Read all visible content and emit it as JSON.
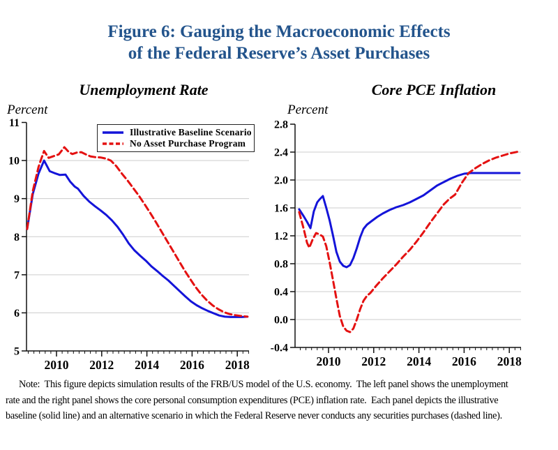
{
  "figure": {
    "title_line1": "Figure 6: Gauging the Macroeconomic Effects",
    "title_line2": "of the Federal Reserve’s Asset Purchases",
    "title_color": "#23548c"
  },
  "legend": {
    "items": [
      {
        "label": "Illustrative Baseline Scenario",
        "color": "#1414d9",
        "style": "solid"
      },
      {
        "label": "No Asset Purchase Program",
        "color": "#e41111",
        "style": "dashed"
      }
    ]
  },
  "note": {
    "line1": "Note:  This figure depicts simulation results of the FRB/US model of the U.S. economy.  The left panel shows the unemployment",
    "line2": "rate and the right panel shows the core personal consumption expenditures (PCE) inflation rate.  Each panel depicts the illustrative",
    "line3": "baseline (solid line) and an alternative scenario in which the Federal Reserve never conducts any securities purchases (dashed line)."
  },
  "chart_data": [
    {
      "type": "line",
      "title": "Unemployment Rate",
      "ylabel": "Percent",
      "xlabel": "",
      "xlim": [
        2008.55,
        2018.5
      ],
      "ylim": [
        5,
        11
      ],
      "yticks": [
        5,
        6,
        7,
        8,
        9,
        10,
        11
      ],
      "ytick_labels": [
        "5",
        "6",
        "7",
        "8",
        "9",
        "10",
        "11"
      ],
      "xticks": [
        2010,
        2012,
        2014,
        2016,
        2018
      ],
      "xtick_labels": [
        "2010",
        "2012",
        "2014",
        "2016",
        "2018"
      ],
      "grid_y": [
        6,
        7,
        8,
        9,
        10
      ],
      "minor_tick_step": 0.25,
      "legend_position": "top-center",
      "series": [
        {
          "name": "Illustrative Baseline Scenario",
          "color": "#1414d9",
          "style": "solid",
          "points": [
            [
              2008.7,
              8.2
            ],
            [
              2008.95,
              9.12
            ],
            [
              2009.2,
              9.65
            ],
            [
              2009.45,
              10.0
            ],
            [
              2009.7,
              9.72
            ],
            [
              2009.95,
              9.66
            ],
            [
              2010.15,
              9.62
            ],
            [
              2010.4,
              9.63
            ],
            [
              2010.6,
              9.45
            ],
            [
              2010.8,
              9.32
            ],
            [
              2010.95,
              9.26
            ],
            [
              2011.2,
              9.07
            ],
            [
              2011.45,
              8.92
            ],
            [
              2011.7,
              8.8
            ],
            [
              2011.95,
              8.69
            ],
            [
              2012.2,
              8.57
            ],
            [
              2012.45,
              8.43
            ],
            [
              2012.7,
              8.26
            ],
            [
              2012.95,
              8.05
            ],
            [
              2013.2,
              7.82
            ],
            [
              2013.45,
              7.64
            ],
            [
              2013.7,
              7.5
            ],
            [
              2013.95,
              7.37
            ],
            [
              2014.2,
              7.22
            ],
            [
              2014.45,
              7.1
            ],
            [
              2014.7,
              6.97
            ],
            [
              2014.95,
              6.85
            ],
            [
              2015.2,
              6.71
            ],
            [
              2015.45,
              6.57
            ],
            [
              2015.7,
              6.43
            ],
            [
              2015.95,
              6.3
            ],
            [
              2016.2,
              6.2
            ],
            [
              2016.45,
              6.12
            ],
            [
              2016.7,
              6.05
            ],
            [
              2016.95,
              5.99
            ],
            [
              2017.2,
              5.93
            ],
            [
              2017.45,
              5.9
            ],
            [
              2017.7,
              5.89
            ],
            [
              2017.95,
              5.89
            ],
            [
              2018.2,
              5.89
            ],
            [
              2018.45,
              5.9
            ]
          ]
        },
        {
          "name": "No Asset Purchase Program",
          "color": "#e41111",
          "style": "dashed",
          "points": [
            [
              2008.7,
              8.2
            ],
            [
              2008.95,
              9.2
            ],
            [
              2009.2,
              9.82
            ],
            [
              2009.3,
              10.0
            ],
            [
              2009.45,
              10.25
            ],
            [
              2009.65,
              10.07
            ],
            [
              2009.9,
              10.12
            ],
            [
              2010.1,
              10.16
            ],
            [
              2010.35,
              10.35
            ],
            [
              2010.55,
              10.22
            ],
            [
              2010.7,
              10.17
            ],
            [
              2010.9,
              10.21
            ],
            [
              2011.1,
              10.22
            ],
            [
              2011.3,
              10.16
            ],
            [
              2011.5,
              10.11
            ],
            [
              2011.7,
              10.09
            ],
            [
              2011.95,
              10.08
            ],
            [
              2012.2,
              10.05
            ],
            [
              2012.4,
              10.0
            ],
            [
              2012.65,
              9.85
            ],
            [
              2012.9,
              9.65
            ],
            [
              2013.15,
              9.47
            ],
            [
              2013.4,
              9.27
            ],
            [
              2013.65,
              9.07
            ],
            [
              2013.9,
              8.85
            ],
            [
              2014.15,
              8.62
            ],
            [
              2014.4,
              8.38
            ],
            [
              2014.65,
              8.13
            ],
            [
              2014.9,
              7.88
            ],
            [
              2015.15,
              7.63
            ],
            [
              2015.4,
              7.38
            ],
            [
              2015.65,
              7.13
            ],
            [
              2015.9,
              6.9
            ],
            [
              2016.15,
              6.68
            ],
            [
              2016.4,
              6.49
            ],
            [
              2016.65,
              6.33
            ],
            [
              2016.9,
              6.2
            ],
            [
              2017.15,
              6.1
            ],
            [
              2017.4,
              6.02
            ],
            [
              2017.65,
              5.97
            ],
            [
              2017.9,
              5.94
            ],
            [
              2018.15,
              5.92
            ],
            [
              2018.45,
              5.9
            ]
          ]
        }
      ]
    },
    {
      "type": "line",
      "title": "Core PCE Inflation",
      "ylabel": "Percent",
      "xlabel": "",
      "xlim": [
        2008.52,
        2018.5
      ],
      "ylim": [
        -0.4,
        2.8
      ],
      "yticks": [
        -0.4,
        0.0,
        0.4,
        0.8,
        1.2,
        1.6,
        2.0,
        2.4,
        2.8
      ],
      "ytick_labels": [
        "-0.4",
        "0.0",
        "0.4",
        "0.8",
        "1.2",
        "1.6",
        "2.0",
        "2.4",
        "2.8"
      ],
      "xticks": [
        2010,
        2012,
        2014,
        2016,
        2018
      ],
      "xtick_labels": [
        "2010",
        "2012",
        "2014",
        "2016",
        "2018"
      ],
      "grid_y": [
        0.0,
        0.4,
        0.8,
        1.2,
        1.6,
        2.0,
        2.4
      ],
      "minor_tick_step": 0.25,
      "legend_position": "none",
      "series": [
        {
          "name": "Illustrative Baseline Scenario",
          "color": "#1414d9",
          "style": "solid",
          "points": [
            [
              2008.7,
              1.58
            ],
            [
              2008.9,
              1.48
            ],
            [
              2009.05,
              1.4
            ],
            [
              2009.2,
              1.31
            ],
            [
              2009.35,
              1.55
            ],
            [
              2009.5,
              1.68
            ],
            [
              2009.6,
              1.72
            ],
            [
              2009.75,
              1.77
            ],
            [
              2009.9,
              1.6
            ],
            [
              2010.05,
              1.42
            ],
            [
              2010.2,
              1.2
            ],
            [
              2010.35,
              0.97
            ],
            [
              2010.5,
              0.83
            ],
            [
              2010.65,
              0.77
            ],
            [
              2010.8,
              0.75
            ],
            [
              2010.95,
              0.78
            ],
            [
              2011.1,
              0.88
            ],
            [
              2011.25,
              1.02
            ],
            [
              2011.4,
              1.18
            ],
            [
              2011.55,
              1.3
            ],
            [
              2011.7,
              1.36
            ],
            [
              2011.9,
              1.41
            ],
            [
              2012.15,
              1.47
            ],
            [
              2012.4,
              1.52
            ],
            [
              2012.7,
              1.57
            ],
            [
              2013.0,
              1.61
            ],
            [
              2013.3,
              1.64
            ],
            [
              2013.6,
              1.68
            ],
            [
              2013.9,
              1.73
            ],
            [
              2014.2,
              1.78
            ],
            [
              2014.5,
              1.85
            ],
            [
              2014.8,
              1.92
            ],
            [
              2015.1,
              1.97
            ],
            [
              2015.4,
              2.02
            ],
            [
              2015.7,
              2.06
            ],
            [
              2016.0,
              2.09
            ],
            [
              2016.3,
              2.1
            ],
            [
              2016.8,
              2.1
            ],
            [
              2017.3,
              2.1
            ],
            [
              2017.8,
              2.1
            ],
            [
              2018.45,
              2.1
            ]
          ]
        },
        {
          "name": "No Asset Purchase Program",
          "color": "#e41111",
          "style": "dashed",
          "points": [
            [
              2008.7,
              1.54
            ],
            [
              2008.9,
              1.3
            ],
            [
              2009.05,
              1.1
            ],
            [
              2009.15,
              1.03
            ],
            [
              2009.3,
              1.15
            ],
            [
              2009.45,
              1.24
            ],
            [
              2009.6,
              1.22
            ],
            [
              2009.75,
              1.19
            ],
            [
              2009.9,
              1.05
            ],
            [
              2010.05,
              0.82
            ],
            [
              2010.2,
              0.56
            ],
            [
              2010.35,
              0.3
            ],
            [
              2010.5,
              0.05
            ],
            [
              2010.65,
              -0.1
            ],
            [
              2010.8,
              -0.16
            ],
            [
              2010.95,
              -0.18
            ],
            [
              2011.1,
              -0.13
            ],
            [
              2011.25,
              0.0
            ],
            [
              2011.4,
              0.15
            ],
            [
              2011.55,
              0.27
            ],
            [
              2011.7,
              0.34
            ],
            [
              2011.85,
              0.38
            ],
            [
              2012.1,
              0.48
            ],
            [
              2012.4,
              0.59
            ],
            [
              2012.7,
              0.69
            ],
            [
              2013.0,
              0.79
            ],
            [
              2013.3,
              0.9
            ],
            [
              2013.6,
              1.0
            ],
            [
              2013.9,
              1.12
            ],
            [
              2014.2,
              1.25
            ],
            [
              2014.5,
              1.39
            ],
            [
              2014.8,
              1.52
            ],
            [
              2015.1,
              1.65
            ],
            [
              2015.35,
              1.73
            ],
            [
              2015.6,
              1.79
            ],
            [
              2015.9,
              1.96
            ],
            [
              2016.2,
              2.1
            ],
            [
              2016.5,
              2.17
            ],
            [
              2016.8,
              2.23
            ],
            [
              2017.1,
              2.28
            ],
            [
              2017.4,
              2.32
            ],
            [
              2017.7,
              2.35
            ],
            [
              2018.0,
              2.38
            ],
            [
              2018.45,
              2.41
            ]
          ]
        }
      ]
    }
  ]
}
